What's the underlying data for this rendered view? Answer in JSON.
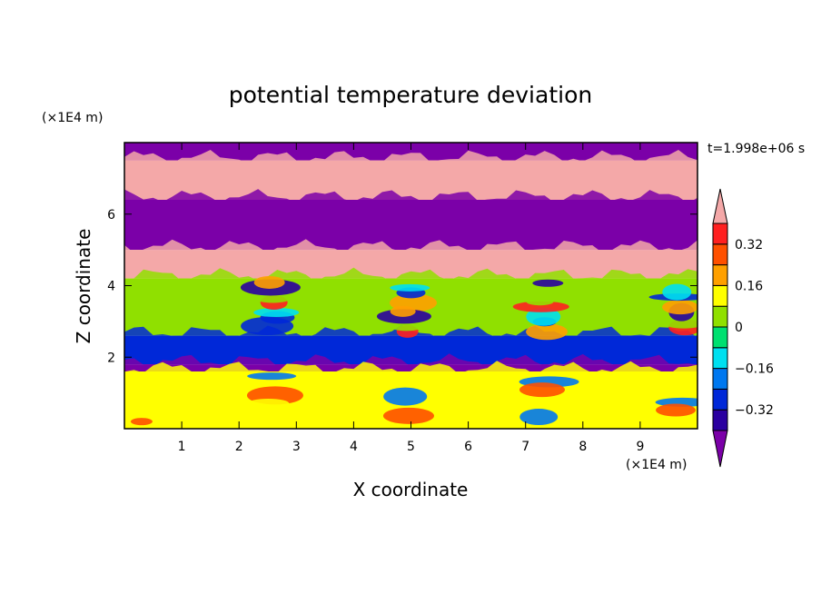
{
  "chart_data": {
    "type": "heatmap",
    "title": "potential temperature deviation",
    "xlabel": "X coordinate",
    "ylabel": "Z coordinate",
    "x_unit": "(×1E4 m)",
    "y_unit": "(×1E4 m)",
    "time_label": "t=1.998e+06 s",
    "xlim": [
      0,
      10
    ],
    "ylim": [
      0,
      8
    ],
    "x_ticks": [
      "1",
      "2",
      "3",
      "4",
      "5",
      "6",
      "7",
      "8",
      "9"
    ],
    "y_ticks": [
      "2",
      "4",
      "6"
    ],
    "colorbar": {
      "levels": [
        -0.4,
        -0.32,
        -0.24,
        -0.16,
        -0.08,
        0,
        0.08,
        0.16,
        0.24,
        0.32,
        0.4
      ],
      "tick_labels": [
        "0.32",
        "0.16",
        "0",
        "−0.16",
        "−0.32"
      ],
      "colors": [
        "#7b00a8",
        "#2a00a0",
        "#0028d8",
        "#0078f0",
        "#00e0f0",
        "#00e070",
        "#90e000",
        "#ffff00",
        "#ffa000",
        "#ff5000",
        "#ff2020",
        "#f4a8a8"
      ],
      "extend": "both"
    },
    "layers": [
      {
        "z_range": [
          7.5,
          8.0
        ],
        "value": -0.45
      },
      {
        "z_range": [
          6.4,
          7.5
        ],
        "value": 0.45
      },
      {
        "z_range": [
          5.0,
          6.4
        ],
        "value": -0.45
      },
      {
        "z_range": [
          4.2,
          5.0
        ],
        "value": 0.45
      },
      {
        "z_range": [
          2.6,
          4.2
        ],
        "value": 0.0
      },
      {
        "z_range": [
          1.8,
          2.6
        ],
        "value": -0.3
      },
      {
        "z_range": [
          1.6,
          1.8
        ],
        "value": -0.45
      },
      {
        "z_range": [
          0.0,
          1.6
        ],
        "value": 0.1
      }
    ]
  }
}
